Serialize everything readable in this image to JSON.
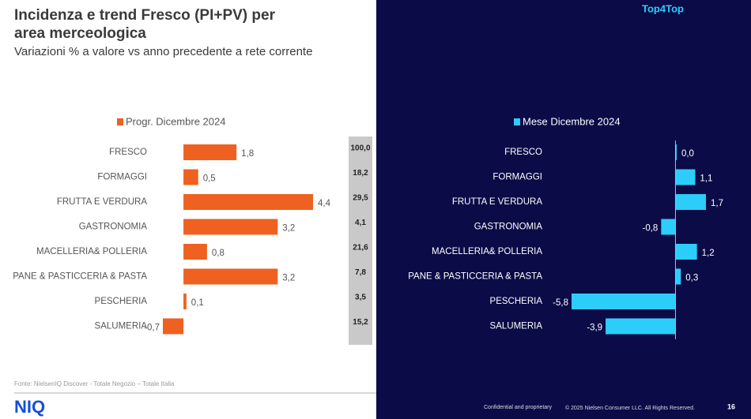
{
  "header": {
    "title": "Incidenza e trend Fresco (PI+PV) per area merceologica",
    "subtitle": "Variazioni % a valore vs anno precedente a rete corrente",
    "badge": "Top4Top"
  },
  "chart_data": [
    {
      "type": "bar",
      "orientation": "horizontal",
      "categories": [
        "FRESCO",
        "FORMAGGI",
        "FRUTTA E VERDURA",
        "GASTRONOMIA",
        "MACELLERIA& POLLERIA",
        "PANE & PASTICCERIA & PASTA",
        "PESCHERIA",
        "SALUMERIA"
      ],
      "series": [
        {
          "name": "Progr. Dicembre 2024",
          "color": "#ee6120",
          "values": [
            1.8,
            0.5,
            4.4,
            3.2,
            0.8,
            3.2,
            0.1,
            -0.7
          ],
          "value_labels": [
            "1,8",
            "0,5",
            "4,4",
            "3,2",
            "0,8",
            "3,2",
            "0,1",
            "-0,7"
          ]
        }
      ]
    },
    {
      "type": "bar",
      "orientation": "horizontal",
      "categories": [
        "FRESCO",
        "FORMAGGI",
        "FRUTTA E VERDURA",
        "GASTRONOMIA",
        "MACELLERIA& POLLERIA",
        "PANE & PASTICCERIA & PASTA",
        "PESCHERIA",
        "SALUMERIA"
      ],
      "series": [
        {
          "name": "Mese Dicembre 2024",
          "color": "#2ccdf8",
          "values": [
            0.0,
            1.1,
            1.7,
            -0.8,
            1.2,
            0.3,
            -5.8,
            -3.9
          ],
          "value_labels": [
            "0,0",
            "1,1",
            "1,7",
            "-0,8",
            "1,2",
            "0,3",
            "-5,8",
            "-3,9"
          ]
        }
      ]
    }
  ],
  "incidence": {
    "values": [
      100.0,
      18.2,
      29.5,
      4.1,
      21.6,
      7.8,
      3.5,
      15.2
    ],
    "value_labels": [
      "100,0",
      "18,2",
      "29,5",
      "4,1",
      "21,6",
      "7,8",
      "3,5",
      "15,2"
    ]
  },
  "footer": {
    "source": "Fonte: NielsenIQ Discover - Totale Negozio – Totale Italia",
    "logo": "NIQ",
    "confidential": "Confidential and proprietary",
    "copyright": "© 2025 Nielsen Consumer LLC. All Rights Reserved.",
    "page": "16"
  }
}
